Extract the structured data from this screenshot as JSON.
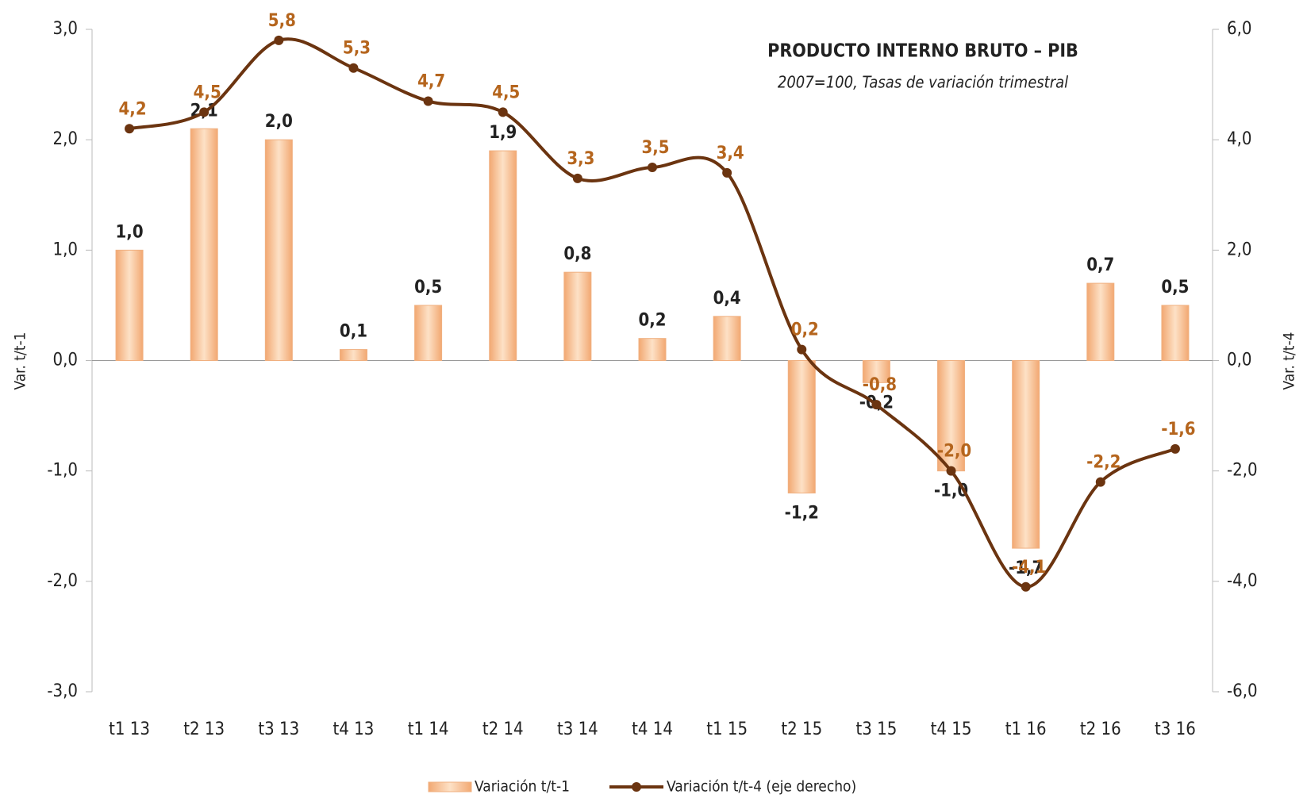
{
  "chart_data": {
    "type": "bar_line",
    "title": "PRODUCTO INTERNO BRUTO – PIB",
    "subtitle": "2007=100, Tasas de variación trimestral",
    "ylabel": "Var. t/t-1",
    "y2label": "Var. t/t-4",
    "categories": [
      "t1 13",
      "t2 13",
      "t3 13",
      "t4 13",
      "t1 14",
      "t2 14",
      "t3 14",
      "t4 14",
      "t1 15",
      "t2 15",
      "t3 15",
      "t4 15",
      "t1 16",
      "t2 16",
      "t3 16"
    ],
    "series": [
      {
        "name": "Variación t/t-1",
        "color": "#f5b98a",
        "type": "bar",
        "values": [
          1.0,
          2.1,
          2.0,
          0.1,
          0.5,
          1.9,
          0.8,
          0.2,
          0.4,
          -1.2,
          -0.2,
          -1.0,
          -1.7,
          0.7,
          0.5
        ],
        "value_labels": [
          "1,0",
          "2,1",
          "2,0",
          "0,1",
          "0,5",
          "1,9",
          "0,8",
          "0,2",
          "0,4",
          "-1,2",
          "-0,2",
          "-1,0",
          "-1,7",
          "0,7",
          "0,5"
        ]
      },
      {
        "name": "Variación t/t-4 (eje derecho)",
        "color": "#6b3410",
        "type": "line",
        "axis": "y2",
        "values": [
          4.2,
          4.5,
          5.8,
          5.3,
          4.7,
          4.5,
          3.3,
          3.5,
          3.4,
          0.2,
          -0.8,
          -2.0,
          -4.1,
          -2.2,
          -1.6
        ],
        "value_labels": [
          "4,2",
          "4,5",
          "5,8",
          "5,3",
          "4,7",
          "4,5",
          "3,3",
          "3,5",
          "3,4",
          "0,2",
          "-0,8",
          "-2,0",
          "-4,1",
          "-2,2",
          "-1,6"
        ]
      }
    ],
    "ylim": [
      -3,
      3
    ],
    "yticks": [
      {
        "value": -3,
        "label": "-3,0"
      },
      {
        "value": -2,
        "label": "-2,0"
      },
      {
        "value": -1,
        "label": "-1,0"
      },
      {
        "value": 0,
        "label": "0,0"
      },
      {
        "value": 1,
        "label": "1,0"
      },
      {
        "value": 2,
        "label": "2,0"
      },
      {
        "value": 3,
        "label": "3,0"
      }
    ],
    "y2lim": [
      -6,
      6
    ],
    "y2ticks": [
      {
        "value": -6,
        "label": "-6,0"
      },
      {
        "value": -4,
        "label": "-4,0"
      },
      {
        "value": -2,
        "label": "-2,0"
      },
      {
        "value": 0,
        "label": "0,0"
      },
      {
        "value": 2,
        "label": "2,0"
      },
      {
        "value": 4,
        "label": "4,0"
      },
      {
        "value": 6,
        "label": "6,0"
      }
    ],
    "legend": "bottom"
  }
}
